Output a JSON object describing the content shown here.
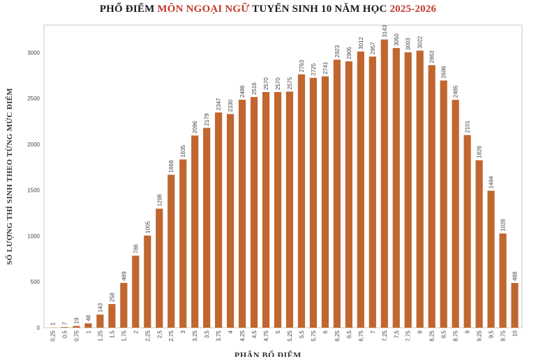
{
  "title": {
    "part1": "PHỔ ĐIỂM ",
    "part2": "MÔN NGOẠI NGỮ",
    "part3": " TUYỂN SINH 10 NĂM HỌC ",
    "part4": "2025-2026"
  },
  "colors": {
    "bar": "#c0662e",
    "accent": "#c0392b",
    "frame": "#c8c8b8",
    "text": "#444444"
  },
  "chart_data": {
    "type": "bar",
    "title": "PHỔ ĐIỂM MÔN NGOẠI NGỮ TUYỂN SINH 10 NĂM HỌC 2025-2026",
    "xlabel": "PHÂN BỐ ĐIỂM",
    "ylabel": "SỐ LƯỢNG THÍ SINH THEO TỪNG MỨC ĐIỂM",
    "ylim": [
      0,
      3300
    ],
    "yticks": [
      0,
      500,
      1000,
      1500,
      2000,
      2500,
      3000
    ],
    "grid": false,
    "categories": [
      "0,25",
      "0,5",
      "0,75",
      "1",
      "1,25",
      "1,5",
      "1,75",
      "2",
      "2,25",
      "2,5",
      "2,75",
      "3",
      "3,25",
      "3,5",
      "3,75",
      "4",
      "4,25",
      "4,5",
      "4,75",
      "5",
      "5,25",
      "5,5",
      "5,75",
      "6",
      "6,25",
      "6,5",
      "6,75",
      "7",
      "7,25",
      "7,5",
      "7,75",
      "8",
      "8,25",
      "8,5",
      "8,75",
      "9",
      "9,25",
      "9,5",
      "9,75",
      "10"
    ],
    "values": [
      1,
      7,
      19,
      48,
      143,
      258,
      489,
      786,
      1005,
      1298,
      1668,
      1835,
      2096,
      2179,
      2347,
      2330,
      2486,
      2516,
      2570,
      2570,
      2575,
      2763,
      2725,
      2741,
      2923,
      2905,
      3012,
      2957,
      3143,
      3050,
      3003,
      3022,
      2863,
      2696,
      2485,
      2101,
      1826,
      1494,
      1028,
      488
    ]
  }
}
